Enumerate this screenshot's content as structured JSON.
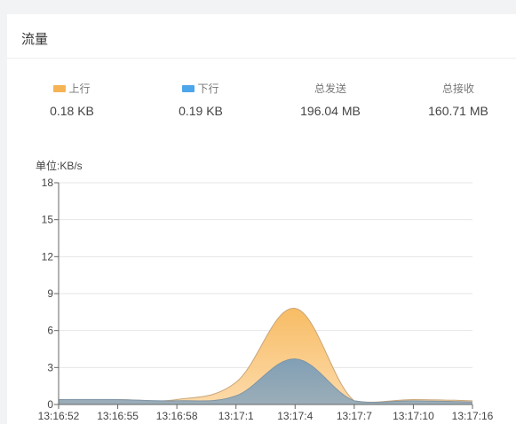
{
  "panel": {
    "title": "流量"
  },
  "stats": [
    {
      "label": "上行",
      "value": "0.18 KB",
      "swatch": "#f5b453"
    },
    {
      "label": "下行",
      "value": "0.19 KB",
      "swatch": "#4da6ea"
    },
    {
      "label": "总发送",
      "value": "196.04 MB"
    },
    {
      "label": "总接收",
      "value": "160.71 MB"
    }
  ],
  "chart_data": {
    "type": "area",
    "unit_label": "单位:KB/s",
    "categories": [
      "13:16:52",
      "13:16:55",
      "13:16:58",
      "13:17:1",
      "13:17:4",
      "13:17:7",
      "13:17:10",
      "13:17:16"
    ],
    "yticks": [
      0,
      3,
      6,
      9,
      12,
      15,
      18
    ],
    "ylim": [
      0,
      18
    ],
    "grid": true,
    "series": [
      {
        "name": "上行",
        "color": "#f5b453",
        "values": [
          0.4,
          0.4,
          0.4,
          1.8,
          7.8,
          0.3,
          0.4,
          0.3
        ]
      },
      {
        "name": "下行",
        "color": "#4da6ea",
        "values": [
          0.4,
          0.4,
          0.3,
          0.7,
          3.7,
          0.3,
          0.3,
          0.2
        ]
      }
    ]
  }
}
